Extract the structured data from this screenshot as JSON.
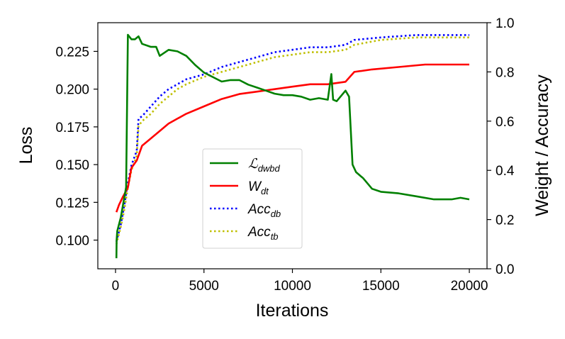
{
  "chart_data": {
    "type": "line",
    "x_axis": {
      "label": "Iterations",
      "range": [
        -1000,
        21000
      ],
      "ticks": [
        0,
        5000,
        10000,
        15000,
        20000
      ],
      "tick_labels": [
        "0",
        "5000",
        "10000",
        "15000",
        "20000"
      ]
    },
    "y_left": {
      "label": "Loss",
      "range": [
        0.081,
        0.244
      ],
      "ticks": [
        0.1,
        0.125,
        0.15,
        0.175,
        0.2,
        0.225
      ],
      "tick_labels": [
        "0.100",
        "0.125",
        "0.150",
        "0.175",
        "0.200",
        "0.225"
      ]
    },
    "y_right": {
      "label": "Weight / Accuracy",
      "range": [
        0.0,
        1.0
      ],
      "ticks": [
        0.0,
        0.2,
        0.4,
        0.6,
        0.8,
        1.0
      ],
      "tick_labels": [
        "0.0",
        "0.2",
        "0.4",
        "0.6",
        "0.8",
        "1.0"
      ]
    },
    "legend_position": "center",
    "series": [
      {
        "name": "L_dwbd",
        "legend_main": "ℒ",
        "legend_sub": "dwbd",
        "axis": "left",
        "color": "#008000",
        "style": "solid",
        "points": [
          [
            50,
            0.088
          ],
          [
            60,
            0.1
          ],
          [
            100,
            0.106
          ],
          [
            300,
            0.115
          ],
          [
            600,
            0.135
          ],
          [
            700,
            0.236
          ],
          [
            900,
            0.233
          ],
          [
            1100,
            0.233
          ],
          [
            1300,
            0.235
          ],
          [
            1500,
            0.23
          ],
          [
            2000,
            0.228
          ],
          [
            2300,
            0.228
          ],
          [
            2500,
            0.222
          ],
          [
            3000,
            0.226
          ],
          [
            3500,
            0.225
          ],
          [
            4000,
            0.222
          ],
          [
            4500,
            0.216
          ],
          [
            5000,
            0.211
          ],
          [
            5500,
            0.208
          ],
          [
            6000,
            0.205
          ],
          [
            6500,
            0.206
          ],
          [
            7000,
            0.206
          ],
          [
            7500,
            0.203
          ],
          [
            8000,
            0.201
          ],
          [
            8500,
            0.199
          ],
          [
            9000,
            0.197
          ],
          [
            9500,
            0.196
          ],
          [
            10000,
            0.196
          ],
          [
            10500,
            0.195
          ],
          [
            11000,
            0.193
          ],
          [
            11500,
            0.194
          ],
          [
            12000,
            0.193
          ],
          [
            12200,
            0.21
          ],
          [
            12300,
            0.193
          ],
          [
            12500,
            0.192
          ],
          [
            13000,
            0.199
          ],
          [
            13200,
            0.195
          ],
          [
            13400,
            0.15
          ],
          [
            13600,
            0.145
          ],
          [
            14000,
            0.141
          ],
          [
            14500,
            0.134
          ],
          [
            15000,
            0.132
          ],
          [
            16000,
            0.131
          ],
          [
            17000,
            0.129
          ],
          [
            18000,
            0.127
          ],
          [
            19000,
            0.127
          ],
          [
            19500,
            0.128
          ],
          [
            20000,
            0.127
          ]
        ]
      },
      {
        "name": "W_dt",
        "legend_main": "W",
        "legend_sub": "dt",
        "axis": "right",
        "color": "#ff0000",
        "style": "solid",
        "points": [
          [
            50,
            0.23
          ],
          [
            200,
            0.26
          ],
          [
            400,
            0.29
          ],
          [
            700,
            0.33
          ],
          [
            900,
            0.41
          ],
          [
            1200,
            0.44
          ],
          [
            1500,
            0.5
          ],
          [
            2000,
            0.53
          ],
          [
            2500,
            0.56
          ],
          [
            3000,
            0.59
          ],
          [
            3500,
            0.61
          ],
          [
            4000,
            0.63
          ],
          [
            5000,
            0.66
          ],
          [
            6000,
            0.69
          ],
          [
            7000,
            0.71
          ],
          [
            8000,
            0.72
          ],
          [
            9000,
            0.73
          ],
          [
            10000,
            0.74
          ],
          [
            11000,
            0.75
          ],
          [
            12000,
            0.75
          ],
          [
            13000,
            0.76
          ],
          [
            13500,
            0.8
          ],
          [
            14500,
            0.81
          ],
          [
            16000,
            0.82
          ],
          [
            17500,
            0.83
          ],
          [
            19000,
            0.83
          ],
          [
            20000,
            0.83
          ]
        ]
      },
      {
        "name": "Acc_db",
        "legend_main": "Acc",
        "legend_sub": "db",
        "axis": "right",
        "color": "#0000ff",
        "style": "dotted",
        "points": [
          [
            50,
            0.11
          ],
          [
            300,
            0.18
          ],
          [
            500,
            0.26
          ],
          [
            700,
            0.35
          ],
          [
            900,
            0.42
          ],
          [
            1200,
            0.48
          ],
          [
            1300,
            0.61
          ],
          [
            1500,
            0.62
          ],
          [
            2000,
            0.66
          ],
          [
            2500,
            0.7
          ],
          [
            3000,
            0.73
          ],
          [
            3500,
            0.75
          ],
          [
            4000,
            0.77
          ],
          [
            5000,
            0.79
          ],
          [
            6000,
            0.82
          ],
          [
            7000,
            0.84
          ],
          [
            8000,
            0.86
          ],
          [
            9000,
            0.88
          ],
          [
            10000,
            0.89
          ],
          [
            11000,
            0.9
          ],
          [
            12000,
            0.9
          ],
          [
            13000,
            0.91
          ],
          [
            13500,
            0.93
          ],
          [
            15000,
            0.94
          ],
          [
            17000,
            0.95
          ],
          [
            18500,
            0.95
          ],
          [
            20000,
            0.95
          ]
        ]
      },
      {
        "name": "Acc_tb",
        "legend_main": "Acc",
        "legend_sub": "tb",
        "axis": "right",
        "color": "#bfbf00",
        "style": "dotted",
        "points": [
          [
            50,
            0.1
          ],
          [
            300,
            0.17
          ],
          [
            500,
            0.24
          ],
          [
            700,
            0.33
          ],
          [
            900,
            0.4
          ],
          [
            1200,
            0.46
          ],
          [
            1300,
            0.58
          ],
          [
            1500,
            0.6
          ],
          [
            2000,
            0.63
          ],
          [
            2500,
            0.67
          ],
          [
            3000,
            0.7
          ],
          [
            3500,
            0.73
          ],
          [
            4000,
            0.75
          ],
          [
            5000,
            0.78
          ],
          [
            6000,
            0.8
          ],
          [
            7000,
            0.82
          ],
          [
            8000,
            0.84
          ],
          [
            9000,
            0.86
          ],
          [
            10000,
            0.87
          ],
          [
            11000,
            0.88
          ],
          [
            12000,
            0.88
          ],
          [
            13000,
            0.89
          ],
          [
            13500,
            0.91
          ],
          [
            15000,
            0.93
          ],
          [
            17000,
            0.94
          ],
          [
            18500,
            0.94
          ],
          [
            20000,
            0.94
          ]
        ]
      }
    ]
  }
}
